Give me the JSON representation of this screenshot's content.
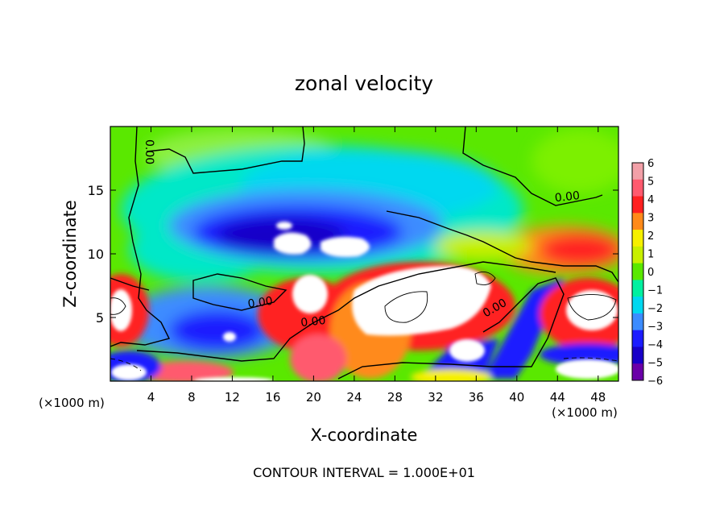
{
  "chart_data": {
    "type": "heatmap",
    "title": "zonal velocity",
    "xlabel": "X-coordinate",
    "ylabel": "Z-coordinate",
    "x_unit_left": "(×1000 m)",
    "x_unit_right": "(×1000 m)",
    "footer": "CONTOUR INTERVAL = 1.000E+01",
    "xlim": [
      0,
      50
    ],
    "ylim": [
      0,
      20
    ],
    "x_ticks": [
      4,
      8,
      12,
      16,
      20,
      24,
      28,
      32,
      36,
      40,
      44,
      48
    ],
    "x_tick_labels": [
      "4",
      "8",
      "12",
      "16",
      "20",
      "24",
      "28",
      "32",
      "36",
      "40",
      "44",
      "48"
    ],
    "y_ticks": [
      5,
      10,
      15
    ],
    "y_tick_labels": [
      "5",
      "10",
      "15"
    ],
    "colorbar": {
      "ticks": [
        6,
        5,
        4,
        3,
        2,
        1,
        0,
        -1,
        -2,
        -3,
        -4,
        -5,
        -6
      ],
      "tick_labels": [
        "6",
        "5",
        "4",
        "3",
        "2",
        "1",
        "0",
        "−1",
        "−2",
        "−3",
        "−4",
        "−5",
        "−6"
      ],
      "colors": [
        "#f2a0a8",
        "#ff5a6e",
        "#ff2020",
        "#ff8a1a",
        "#f6f000",
        "#c8f000",
        "#5ae800",
        "#00f0a0",
        "#00d8f0",
        "#3c8cff",
        "#1c1cff",
        "#1800c8",
        "#6a00a8"
      ],
      "out_of_range": "#ffffff"
    },
    "contour_labels": [
      {
        "text": "0.00",
        "x": 3.5,
        "z": 18.0,
        "angle": 90
      },
      {
        "text": "0.00",
        "x": 45.0,
        "z": 14.2,
        "angle": -6
      },
      {
        "text": "0.00",
        "x": 14.8,
        "z": 5.9,
        "angle": -8
      },
      {
        "text": "0.00",
        "x": 20.0,
        "z": 4.4,
        "angle": -6
      },
      {
        "text": "0.00",
        "x": 38.0,
        "z": 5.5,
        "angle": -30
      }
    ]
  }
}
